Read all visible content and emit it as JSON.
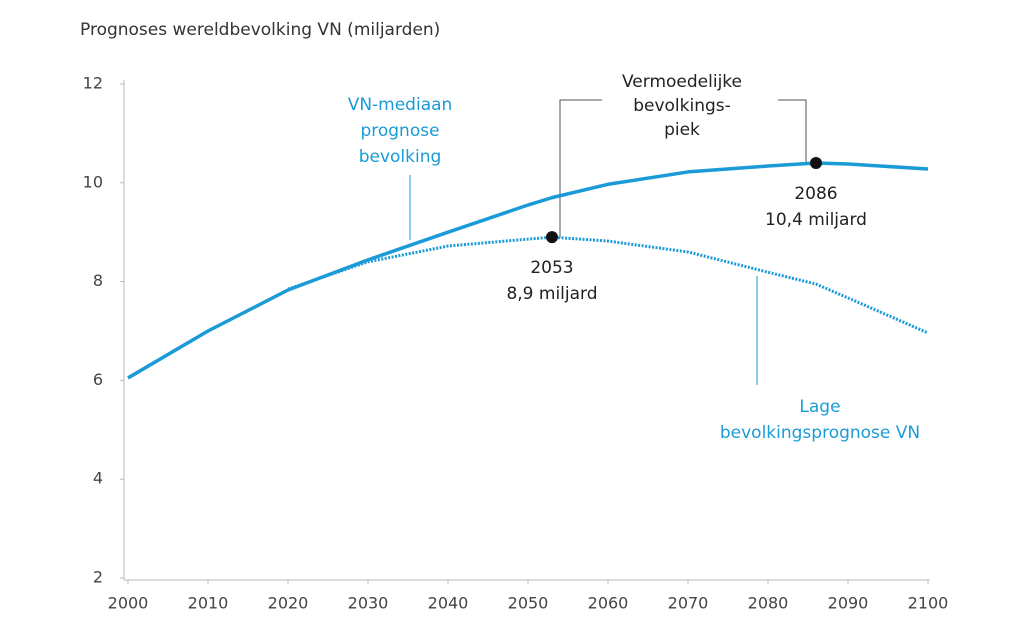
{
  "chart_data": {
    "type": "line",
    "title": "Prognoses wereldbevolking VN (miljarden)",
    "x": [
      2000,
      2010,
      2020,
      2030,
      2040,
      2050,
      2053,
      2060,
      2070,
      2080,
      2086,
      2090,
      2100
    ],
    "series": [
      {
        "name": [
          "VN-mediaan",
          "prognose",
          "bevolking"
        ],
        "color": "#1a9bd7",
        "dashed": false,
        "values": [
          6.05,
          7.0,
          7.83,
          8.44,
          9.0,
          9.55,
          9.7,
          9.97,
          10.22,
          10.34,
          10.4,
          10.38,
          10.28
        ]
      },
      {
        "name": [
          "Lage",
          "bevolkingsprognose VN"
        ],
        "color": "#1a9bd7",
        "dashed": true,
        "values": [
          null,
          null,
          7.85,
          8.4,
          8.72,
          8.86,
          8.9,
          8.82,
          8.6,
          8.19,
          7.95,
          7.67,
          6.96
        ]
      }
    ],
    "peak_title": [
      "Vermoedelijke",
      "bevolkings-",
      "piek"
    ],
    "annotations": [
      {
        "x": 2053,
        "y": 8.9,
        "year": "2053",
        "text": "8,9 miljard"
      },
      {
        "x": 2086,
        "y": 10.4,
        "year": "2086",
        "text": "10,4 miljard"
      }
    ],
    "xlim": [
      2000,
      2100
    ],
    "xticks": [
      2000,
      2010,
      2020,
      2030,
      2040,
      2050,
      2060,
      2070,
      2080,
      2090,
      2100
    ],
    "ylim": [
      2,
      12
    ],
    "yticks": [
      2,
      4,
      6,
      8,
      10,
      12
    ],
    "grid": false
  }
}
